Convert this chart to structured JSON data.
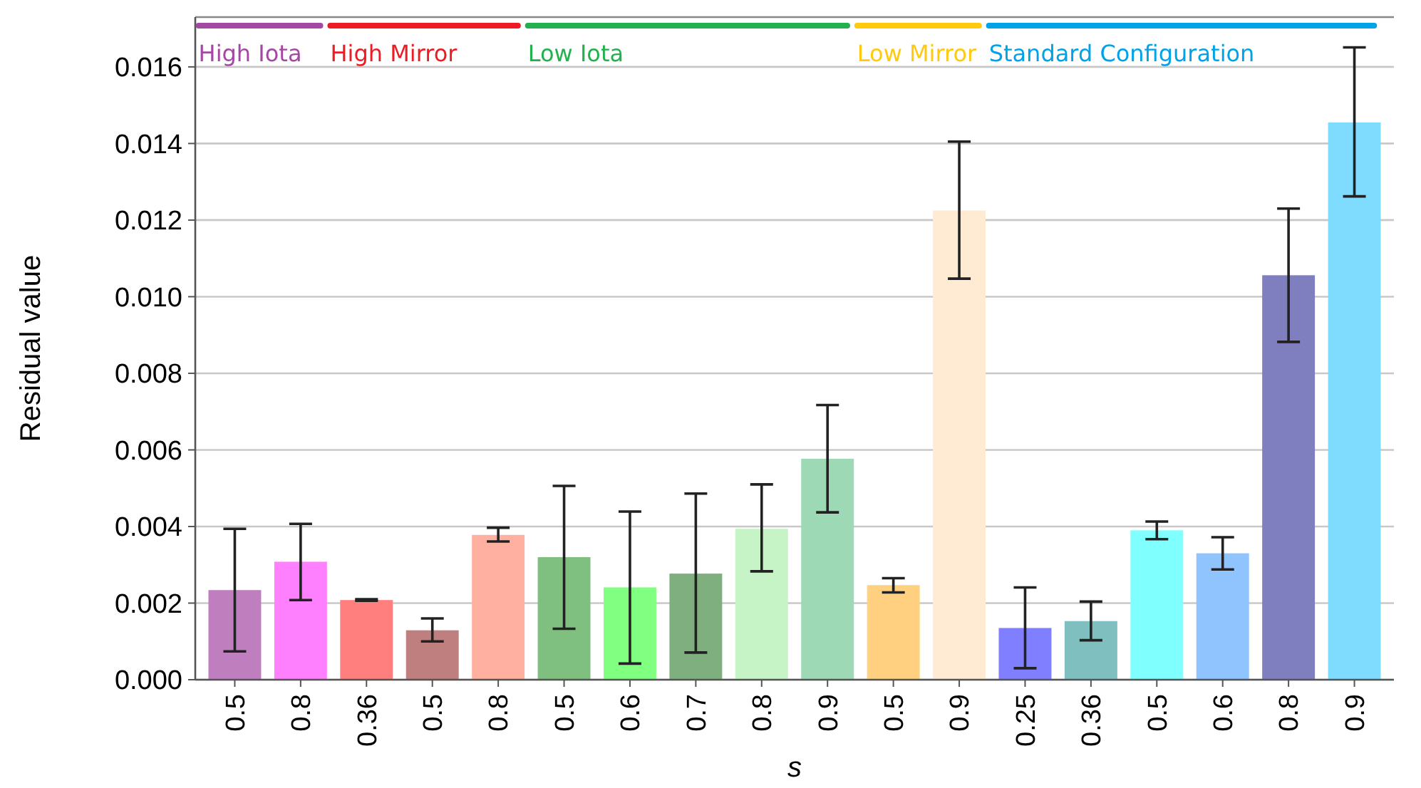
{
  "chart_data": {
    "type": "bar",
    "xlabel": "s",
    "ylabel": "Residual value",
    "categories": [
      "0.5",
      "0.8",
      "0.36",
      "0.5",
      "0.8",
      "0.5",
      "0.6",
      "0.7",
      "0.8",
      "0.9",
      "0.5",
      "0.9",
      "0.25",
      "0.36",
      "0.5",
      "0.6",
      "0.8",
      "0.9"
    ],
    "values": [
      0.00234,
      0.00308,
      0.00208,
      0.00129,
      0.00378,
      0.0032,
      0.00241,
      0.00277,
      0.00394,
      0.00577,
      0.00247,
      0.01225,
      0.00135,
      0.00153,
      0.0039,
      0.0033,
      0.01056,
      0.01455
    ],
    "colors": [
      "#bf7fbf",
      "#ff80ff",
      "#ff7f7f",
      "#bf7f7f",
      "#ffb0a0",
      "#7fbf7f",
      "#80ff80",
      "#7fae7f",
      "#c6f4c6",
      "#9ed9b5",
      "#ffd080",
      "#ffebd3",
      "#7f7fff",
      "#7fbfbf",
      "#80ffff",
      "#90c4ff",
      "#7f7fbf",
      "#80dcff"
    ],
    "errors": [
      [
        0.00074,
        0.00394
      ],
      [
        0.00208,
        0.00407
      ],
      [
        0.00206,
        0.0021
      ],
      [
        0.001,
        0.0016
      ],
      [
        0.00361,
        0.00397
      ],
      [
        0.00133,
        0.00506
      ],
      [
        0.00042,
        0.00439
      ],
      [
        0.00071,
        0.00486
      ],
      [
        0.00283,
        0.0051
      ],
      [
        0.00437,
        0.00717
      ],
      [
        0.00228,
        0.00265
      ],
      [
        0.01047,
        0.01405
      ],
      [
        0.0003,
        0.00241
      ],
      [
        0.00103,
        0.00204
      ],
      [
        0.00367,
        0.00413
      ],
      [
        0.00288,
        0.00372
      ],
      [
        0.00882,
        0.0123
      ],
      [
        0.01262,
        0.01651
      ]
    ],
    "ylim": [
      0,
      0.0173
    ],
    "yticks": [
      {
        "value": 0,
        "label": "0.000"
      },
      {
        "value": 0.002,
        "label": "0.002"
      },
      {
        "value": 0.004,
        "label": "0.004"
      },
      {
        "value": 0.006,
        "label": "0.006"
      },
      {
        "value": 0.008,
        "label": "0.008"
      },
      {
        "value": 0.01,
        "label": "0.010"
      },
      {
        "value": 0.012,
        "label": "0.012"
      },
      {
        "value": 0.014,
        "label": "0.014"
      },
      {
        "value": 0.016,
        "label": "0.016"
      }
    ],
    "grid": "y",
    "annotations": [
      "High Iota",
      "High Mirror",
      "Low Iota",
      "Low Mirror",
      "Standard Configuration"
    ]
  }
}
